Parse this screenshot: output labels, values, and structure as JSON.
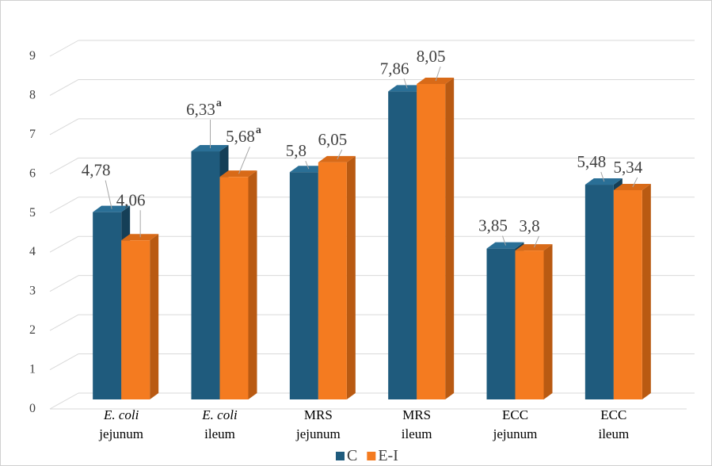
{
  "chart_data": {
    "type": "bar",
    "title": "",
    "xlabel": "",
    "ylabel": "",
    "ylim": [
      0,
      9
    ],
    "yticks": [
      "0",
      "1",
      "2",
      "3",
      "4",
      "5",
      "6",
      "7",
      "8",
      "9"
    ],
    "grid": true,
    "legend_position": "bottom",
    "style": "3d-clustered-column",
    "categories": [
      {
        "line1": "E. coli",
        "line2": "jejunum",
        "italic_line1": true
      },
      {
        "line1": "E. coli",
        "line2": "ileum",
        "italic_line1": true
      },
      {
        "line1": "MRS",
        "line2": "jejunum",
        "italic_line1": false
      },
      {
        "line1": "MRS",
        "line2": "ileum",
        "italic_line1": false
      },
      {
        "line1": "ECC",
        "line2": "jejunum",
        "italic_line1": false
      },
      {
        "line1": "ECC",
        "line2": "ileum",
        "italic_line1": false
      }
    ],
    "series": [
      {
        "name": "C",
        "color": "#1f5b7d",
        "side_color": "#153f57",
        "top_color": "#2a6f96",
        "values": [
          4.78,
          6.33,
          5.8,
          7.86,
          3.85,
          5.48
        ],
        "labels": [
          "4,78",
          "6,33",
          "5,8",
          "7,86",
          "3,85",
          "5,48"
        ],
        "superscripts": [
          "",
          "a",
          "",
          "",
          "",
          ""
        ]
      },
      {
        "name": "E-I",
        "color": "#f47b20",
        "side_color": "#b95a12",
        "top_color": "#d86a18",
        "values": [
          4.06,
          5.68,
          6.05,
          8.05,
          3.8,
          5.34
        ],
        "labels": [
          "4,06",
          "5,68",
          "6,05",
          "8,05",
          "3,8",
          "5,34"
        ],
        "superscripts": [
          "",
          "a",
          "",
          "",
          "",
          ""
        ]
      }
    ]
  }
}
